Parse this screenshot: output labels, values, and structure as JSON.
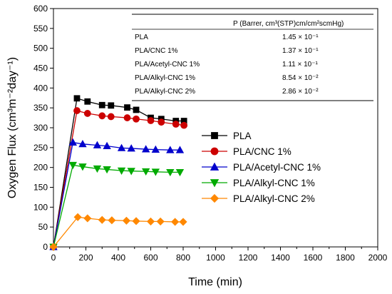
{
  "chart_data": {
    "type": "line",
    "title": "",
    "xlabel": "Time (min)",
    "ylabel": "Oxygen Flux (cm³m⁻²day⁻¹)",
    "xlim": [
      0,
      2000
    ],
    "ylim": [
      0,
      600
    ],
    "x_ticks": [
      0,
      200,
      400,
      600,
      800,
      1000,
      1200,
      1400,
      1600,
      1800,
      2000
    ],
    "y_ticks": [
      0,
      50,
      100,
      150,
      200,
      250,
      300,
      350,
      400,
      450,
      500,
      550,
      600
    ],
    "grid": false,
    "legend_position": "center-right",
    "series": [
      {
        "name": "PLA",
        "color": "#000000",
        "marker": "square",
        "x": [
          0,
          145,
          210,
          300,
          355,
          455,
          510,
          600,
          665,
          755,
          805
        ],
        "y": [
          0,
          374,
          366,
          357,
          356,
          351,
          345,
          325,
          322,
          317,
          317
        ]
      },
      {
        "name": "PLA/CNC 1%",
        "color": "#cc0000",
        "marker": "circle",
        "x": [
          0,
          145,
          210,
          300,
          355,
          455,
          510,
          600,
          665,
          755,
          805
        ],
        "y": [
          0,
          343,
          336,
          330,
          328,
          325,
          322,
          318,
          314,
          309,
          306
        ]
      },
      {
        "name": "PLA/Acetyl-CNC 1%",
        "color": "#0000cc",
        "marker": "triangle-up",
        "x": [
          0,
          120,
          180,
          270,
          330,
          420,
          480,
          570,
          630,
          720,
          780
        ],
        "y": [
          0,
          263,
          259,
          256,
          254,
          249,
          248,
          246,
          245,
          244,
          244
        ]
      },
      {
        "name": "PLA/Alkyl-CNC 1%",
        "color": "#00aa00",
        "marker": "triangle-down",
        "x": [
          0,
          120,
          180,
          270,
          330,
          420,
          480,
          570,
          630,
          720,
          780
        ],
        "y": [
          0,
          206,
          202,
          197,
          195,
          192,
          191,
          190,
          189,
          188,
          188
        ]
      },
      {
        "name": "PLA/Alkyl-CNC 2%",
        "color": "#ff8800",
        "marker": "diamond",
        "x": [
          0,
          150,
          210,
          300,
          360,
          450,
          510,
          600,
          660,
          750,
          800
        ],
        "y": [
          0,
          75,
          72,
          68,
          67,
          66,
          65,
          64,
          64,
          63,
          63
        ]
      }
    ],
    "table": {
      "header": "P (Barrer, cm³(STP)cm/cm²scmHg)",
      "rows": [
        {
          "label": "PLA",
          "value": "1.45 × 10⁻¹"
        },
        {
          "label": "PLA/CNC 1%",
          "value": "1.37 × 10⁻¹"
        },
        {
          "label": "PLA/Acetyl-CNC 1%",
          "value": "1.11 × 10⁻¹"
        },
        {
          "label": "PLA/Alkyl-CNC 1%",
          "value": "8.54 × 10⁻²"
        },
        {
          "label": "PLA/Alkyl-CNC 2%",
          "value": "2.86 × 10⁻²"
        }
      ]
    }
  }
}
